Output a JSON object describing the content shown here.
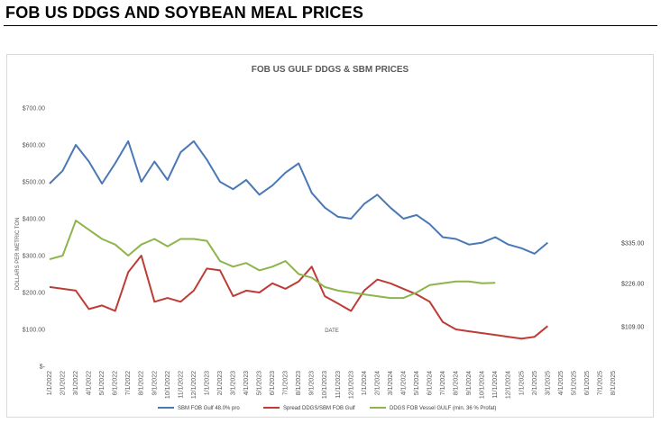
{
  "page": {
    "heading": "FOB US DDGS AND SOYBEAN MEAL PRICES"
  },
  "chart_data": {
    "type": "line",
    "title": "FOB US GULF DDGS & SBM PRICES",
    "xlabel": "DATE",
    "ylabel": "DOLLARS PER METRIC TON",
    "ylim": [
      0,
      700
    ],
    "ytick_labels": [
      "$-",
      "$100.00",
      "$200.00",
      "$300.00",
      "$400.00",
      "$500.00",
      "$600.00",
      "$700.00"
    ],
    "ytick_values": [
      0,
      100,
      200,
      300,
      400,
      500,
      600,
      700
    ],
    "grid": false,
    "legend_position": "bottom",
    "x": [
      "1/1/2022",
      "2/1/2022",
      "3/1/2022",
      "4/1/2022",
      "5/1/2022",
      "6/1/2022",
      "7/1/2022",
      "8/1/2022",
      "9/1/2022",
      "10/1/2022",
      "11/1/2022",
      "12/1/2022",
      "1/1/2023",
      "2/1/2023",
      "3/1/2023",
      "4/1/2023",
      "5/1/2023",
      "6/1/2023",
      "7/1/2023",
      "8/1/2023",
      "9/1/2023",
      "10/1/2023",
      "11/1/2023",
      "12/1/2023",
      "1/1/2024",
      "2/1/2024",
      "3/1/2024",
      "4/1/2024",
      "5/1/2024",
      "6/1/2024",
      "7/1/2024",
      "8/1/2024",
      "9/1/2024",
      "10/1/2024",
      "11/1/2024",
      "12/1/2024",
      "1/1/2025",
      "2/1/2025",
      "3/1/2025",
      "4/1/2025",
      "5/1/2025",
      "6/1/2025",
      "7/1/2025",
      "8/1/2025"
    ],
    "series": [
      {
        "name": "SBM FOB Gulf 48.0% pro",
        "color": "#4a78b5",
        "values": [
          495,
          530,
          600,
          555,
          495,
          550,
          610,
          500,
          555,
          505,
          580,
          610,
          560,
          500,
          480,
          505,
          465,
          490,
          525,
          550,
          470,
          430,
          405,
          400,
          440,
          465,
          430,
          400,
          410,
          385,
          350,
          345,
          330,
          335,
          350,
          330,
          320,
          305,
          335,
          null,
          null,
          null,
          null,
          null
        ],
        "end_label": "$335.00"
      },
      {
        "name": "Spread DDGS/SBM FOB Gulf",
        "color": "#bd3c36",
        "values": [
          215,
          210,
          205,
          155,
          165,
          150,
          255,
          300,
          175,
          185,
          175,
          205,
          265,
          260,
          190,
          205,
          200,
          225,
          210,
          230,
          270,
          190,
          170,
          150,
          205,
          235,
          225,
          210,
          195,
          175,
          120,
          100,
          95,
          90,
          85,
          80,
          75,
          80,
          109,
          null,
          null,
          null,
          null,
          null
        ],
        "end_label": "$109.00"
      },
      {
        "name": "DDGS FOB Vessel GULF  (min. 36 % Profat)",
        "color": "#8fb44b",
        "values": [
          290,
          300,
          395,
          370,
          345,
          330,
          300,
          330,
          345,
          325,
          345,
          345,
          340,
          285,
          270,
          280,
          260,
          270,
          285,
          250,
          240,
          215,
          205,
          200,
          195,
          190,
          185,
          185,
          200,
          220,
          225,
          230,
          230,
          225,
          226,
          null,
          null,
          null,
          null,
          null,
          null,
          null,
          null,
          null
        ],
        "end_label": "$226.00"
      }
    ]
  }
}
